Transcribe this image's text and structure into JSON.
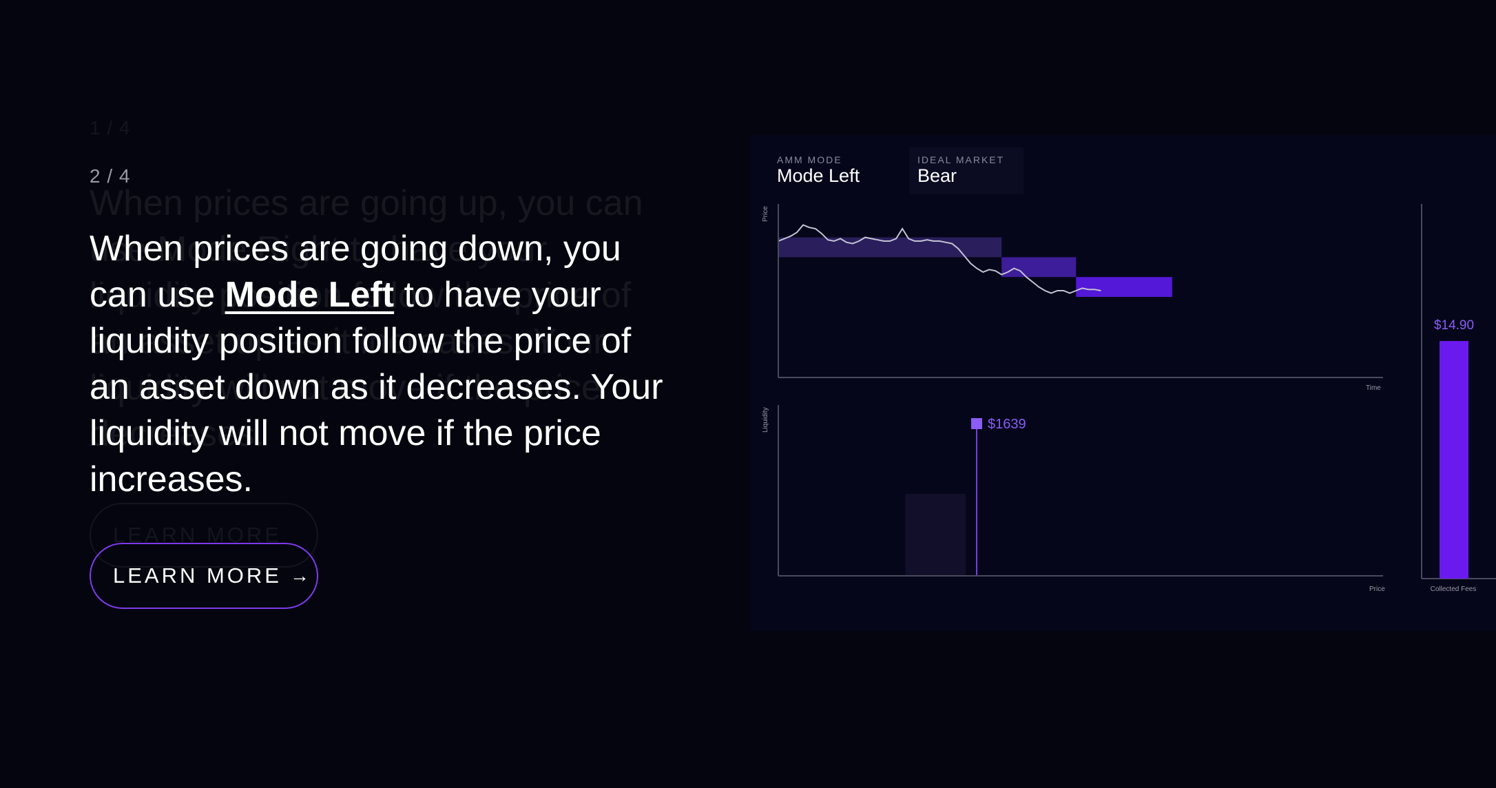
{
  "slides": {
    "previous_step": "1 / 4",
    "step": "2 / 4",
    "previous_description": "When prices are going up, you can use Mode Right to have your liquidity position follow the price of an asset up as it increases. Your liquidity will not move if the price decreases.",
    "description": {
      "before": "When prices are going down, you can use ",
      "mode": "Mode Left",
      "after": " to have your liquidity position follow the price of an asset down as it decreases. Your liquidity will not move if the price increases."
    },
    "previous_button_label": "LEARN MORE",
    "button_label": "LEARN MORE",
    "button_arrow": "→"
  },
  "panel": {
    "amm_mode_label": "AMM MODE",
    "amm_mode_value": "Mode Left",
    "ideal_market_label": "IDEAL MARKET",
    "ideal_market_value": "Bear"
  },
  "chart_data": [
    {
      "type": "line",
      "title": "",
      "ylabel": "Price",
      "xlabel": "Time",
      "grid": false,
      "colors": {
        "line": "#c4c4d4",
        "range_faded": "#2a1f5c",
        "range_mid": "#3d1d99",
        "range_active": "#5418d8"
      },
      "series": [
        {
          "x": [
            0,
            2,
            4,
            6,
            8,
            10,
            12,
            14,
            16,
            18,
            20,
            22,
            24,
            26,
            28,
            30,
            32,
            34,
            36,
            38,
            40,
            42,
            44,
            46,
            48,
            50,
            52,
            54,
            56,
            58,
            60,
            62,
            64,
            66,
            68,
            70,
            72,
            74,
            76,
            78,
            80,
            82,
            84,
            86,
            88,
            90,
            92,
            94,
            96,
            98,
            100,
            102,
            104
          ],
          "values": [
            0.6,
            0.62,
            0.64,
            0.67,
            0.73,
            0.71,
            0.7,
            0.66,
            0.61,
            0.6,
            0.62,
            0.59,
            0.58,
            0.6,
            0.63,
            0.62,
            0.61,
            0.6,
            0.6,
            0.62,
            0.7,
            0.62,
            0.6,
            0.6,
            0.61,
            0.6,
            0.6,
            0.59,
            0.58,
            0.54,
            0.48,
            0.42,
            0.38,
            0.35,
            0.37,
            0.36,
            0.33,
            0.35,
            0.38,
            0.36,
            0.31,
            0.27,
            0.23,
            0.2,
            0.18,
            0.2,
            0.2,
            0.18,
            0.2,
            0.22,
            0.21,
            0.21,
            0.2
          ]
        }
      ],
      "ranges": [
        {
          "x": [
            0,
            72
          ],
          "y": [
            0.47,
            0.63
          ],
          "state": "faded"
        },
        {
          "x": [
            72,
            96
          ],
          "y": [
            0.31,
            0.47
          ],
          "state": "mid"
        },
        {
          "x": [
            96,
            127
          ],
          "y": [
            0.15,
            0.31
          ],
          "state": "active"
        }
      ],
      "xlim": [
        0,
        195
      ],
      "ylim": [
        -0.5,
        0.9
      ]
    },
    {
      "type": "bar",
      "xlabel": "Price",
      "ylabel": "Liquidity",
      "bars": [
        {
          "x": [
            0.21,
            0.31
          ],
          "value": 0.48,
          "color": "#120f2b"
        }
      ],
      "marker": {
        "x": 0.328,
        "label": "$1639",
        "color": "#7c3aed"
      },
      "xlim": [
        0,
        1
      ],
      "ylim": [
        0,
        1
      ]
    },
    {
      "type": "bar",
      "xlabel": "Collected Fees",
      "categories": [
        "Collected Fees"
      ],
      "values": [
        14.9
      ],
      "data_labels": [
        "$14.90"
      ],
      "color": "#6a1aef",
      "ylim": [
        0,
        23.5
      ]
    }
  ]
}
